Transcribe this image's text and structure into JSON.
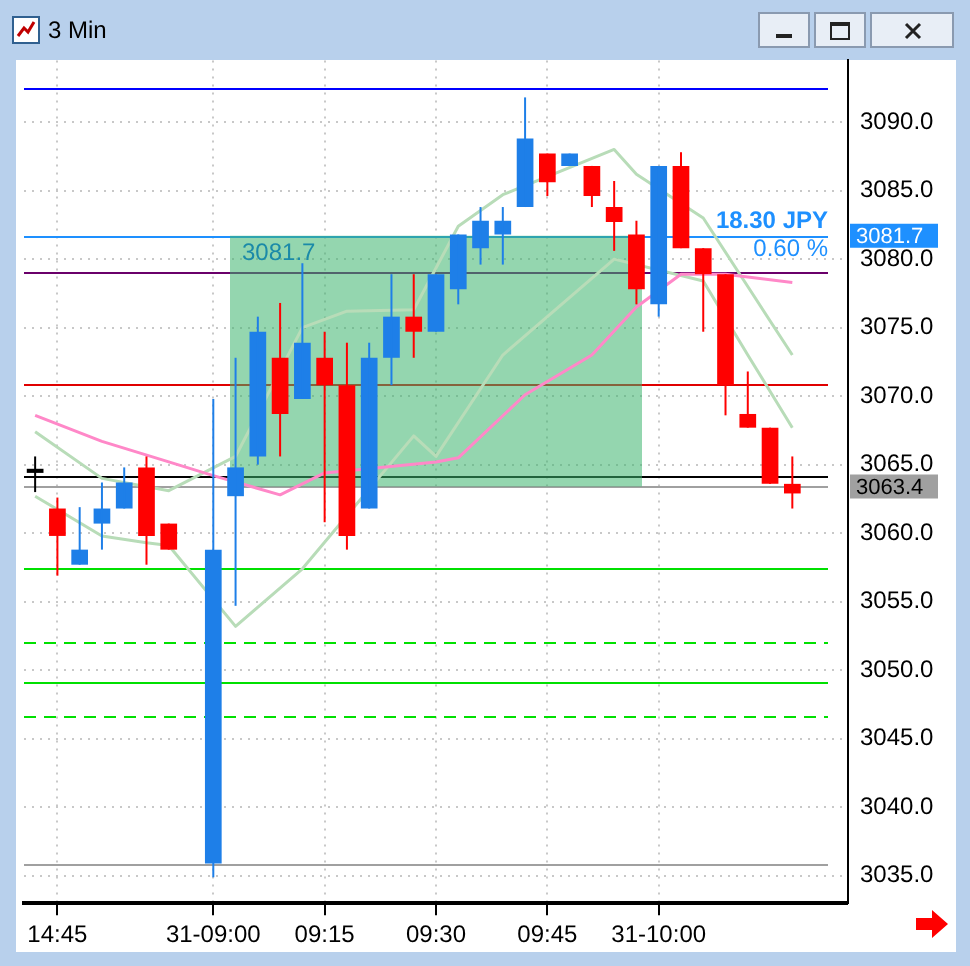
{
  "chart_data": {
    "type": "candlestick",
    "title": "3 Min",
    "categories": [
      null,
      "14:45",
      null,
      null,
      null,
      null,
      null,
      null,
      "31-09:00",
      null,
      null,
      null,
      null,
      "09:15",
      null,
      null,
      null,
      null,
      "09:30",
      null,
      null,
      null,
      null,
      "09:45",
      null,
      null,
      null,
      null,
      "31-10:00",
      null,
      null,
      null,
      null,
      null,
      null,
      null,
      null
    ],
    "ohlc": [
      [
        3064.4,
        3065.6,
        3063.0,
        3064.7
      ],
      [
        3061.8,
        3062.6,
        3056.9,
        3059.8
      ],
      [
        3057.7,
        3061.9,
        3057.7,
        3058.8
      ],
      [
        3060.7,
        3063.7,
        3058.8,
        3061.8
      ],
      [
        3061.8,
        3064.8,
        3061.8,
        3063.7
      ],
      [
        3064.8,
        3065.6,
        3057.7,
        3059.8
      ],
      [
        3060.7,
        3060.7,
        3058.8,
        3058.8
      ],
      null,
      [
        3035.9,
        3069.8,
        3034.9,
        3058.8
      ],
      [
        3062.7,
        3072.8,
        3054.7,
        3064.8
      ],
      [
        3065.6,
        3075.8,
        3065.0,
        3074.7
      ],
      [
        3072.8,
        3076.8,
        3065.6,
        3068.7
      ],
      [
        3069.8,
        3079.7,
        3069.8,
        3073.9
      ],
      [
        3072.8,
        3074.7,
        3060.8,
        3070.8
      ],
      [
        3070.8,
        3073.9,
        3058.8,
        3059.8
      ],
      [
        3061.8,
        3073.9,
        3061.8,
        3072.8
      ],
      [
        3072.8,
        3078.9,
        3070.8,
        3075.8
      ],
      [
        3075.8,
        3078.9,
        3072.8,
        3074.7
      ],
      [
        3074.7,
        3078.9,
        3074.7,
        3078.9
      ],
      [
        3077.8,
        3081.8,
        3076.7,
        3081.8
      ],
      [
        3080.8,
        3083.8,
        3079.6,
        3082.8
      ],
      [
        3081.8,
        3083.8,
        3079.6,
        3082.8
      ],
      [
        3083.8,
        3091.8,
        3083.8,
        3088.8
      ],
      [
        3087.7,
        3087.7,
        3084.6,
        3085.6
      ],
      [
        3086.8,
        3087.7,
        3086.8,
        3087.7
      ],
      [
        3086.8,
        3086.8,
        3083.8,
        3084.6
      ],
      [
        3083.8,
        3085.7,
        3080.6,
        3082.7
      ],
      [
        3081.8,
        3082.8,
        3076.7,
        3077.8
      ],
      [
        3076.7,
        3086.8,
        3075.8,
        3086.8
      ],
      [
        3086.8,
        3087.8,
        3080.8,
        3080.8
      ],
      [
        3080.8,
        3080.8,
        3074.7,
        3078.9
      ],
      [
        3078.9,
        3078.9,
        3068.6,
        3070.8
      ],
      [
        3068.7,
        3071.8,
        3067.7,
        3067.7
      ],
      [
        3067.7,
        3067.7,
        3063.6,
        3063.6
      ],
      [
        3063.6,
        3065.6,
        3061.8,
        3062.9
      ],
      null,
      null
    ],
    "series": [
      {
        "type": "line",
        "color": "#ff88c8",
        "values": [
          3068.6,
          null,
          null,
          3066.7,
          null,
          null,
          3065.2,
          null,
          3064.2,
          null,
          null,
          3062.8,
          null,
          3064.4,
          null,
          null,
          null,
          null,
          3065.2,
          3065.5,
          null,
          null,
          3070.1,
          null,
          null,
          3073.0,
          null,
          3076.5,
          null,
          3078.9,
          null,
          3078.9,
          null,
          null,
          3078.3,
          null,
          null
        ]
      },
      {
        "type": "line",
        "color": "#b8dcb8",
        "values": [
          3067.4,
          null,
          null,
          3064.0,
          null,
          null,
          3063.1,
          null,
          null,
          3065.6,
          null,
          null,
          3075.0,
          null,
          3076.2,
          null,
          null,
          3076.3,
          null,
          3082.4,
          null,
          3084.7,
          null,
          null,
          null,
          null,
          3088.0,
          3086.2,
          null,
          null,
          3083.0,
          null,
          3078.0,
          null,
          3073.0,
          null,
          null
        ]
      },
      {
        "type": "line",
        "color": "#b8dcb8",
        "values": [
          3062.7,
          null,
          null,
          3059.8,
          null,
          3059.3,
          3059.1,
          null,
          null,
          3053.2,
          null,
          null,
          3057.4,
          null,
          null,
          null,
          null,
          3067.1,
          3065.6,
          null,
          null,
          3073.0,
          null,
          null,
          null,
          null,
          3080.0,
          null,
          null,
          null,
          3078.4,
          null,
          3073.0,
          null,
          3067.7,
          null,
          null
        ]
      }
    ],
    "colors": [
      "#000000",
      "#ff0000",
      "#1e7fe8",
      "#1e7fe8",
      "#1e7fe8",
      "#ff0000",
      "#ff0000",
      null,
      "#1e7fe8",
      "#1e7fe8",
      "#1e7fe8",
      "#ff0000",
      "#1e7fe8",
      "#ff0000",
      "#ff0000",
      "#1e7fe8",
      "#1e7fe8",
      "#ff0000",
      "#1e7fe8",
      "#1e7fe8",
      "#1e7fe8",
      "#1e7fe8",
      "#1e7fe8",
      "#ff0000",
      "#1e7fe8",
      "#ff0000",
      "#ff0000",
      "#ff0000",
      "#1e7fe8",
      "#ff0000",
      "#ff0000",
      "#ff0000",
      "#ff0000",
      "#ff0000",
      "#ff0000",
      null,
      null
    ],
    "ylim": [
      3033,
      3094.5
    ],
    "yticks": [
      {
        "value": 3035,
        "label": "3035.0"
      },
      {
        "value": 3040,
        "label": "3040.0"
      },
      {
        "value": 3045,
        "label": "3045.0"
      },
      {
        "value": 3050,
        "label": "3050.0"
      },
      {
        "value": 3055,
        "label": "3055.0"
      },
      {
        "value": 3060,
        "label": "3060.0"
      },
      {
        "value": 3065,
        "label": "3065.0"
      },
      {
        "value": 3070,
        "label": "3070.0"
      },
      {
        "value": 3075,
        "label": "3075.0"
      },
      {
        "value": 3080,
        "label": "3080.0"
      },
      {
        "value": 3085,
        "label": "3085.0"
      },
      {
        "value": 3090,
        "label": "3090.0"
      }
    ],
    "grid": true,
    "legend": false,
    "ref_lines": [
      {
        "axis": "y",
        "value": 3092.5,
        "color": "#0000ff"
      },
      {
        "axis": "y",
        "value": 3079.1,
        "color": "#6a006a"
      },
      {
        "axis": "y",
        "value": 3070.9,
        "color": "#e00000"
      },
      {
        "axis": "y",
        "value": 3064.2,
        "color": "#000000"
      },
      {
        "axis": "y",
        "value": 3063.4,
        "color": "#a0a0a0",
        "label": "3063.4"
      },
      {
        "axis": "y",
        "value": 3081.7,
        "color": "#1e90ff",
        "label": "3081.7"
      },
      {
        "axis": "y",
        "value": 3057.4,
        "color": "#00e000"
      },
      {
        "axis": "y",
        "value": 3052.0,
        "color": "#00e000",
        "line_style": "dashed"
      },
      {
        "axis": "y",
        "value": 3049.2,
        "color": "#00e000"
      },
      {
        "axis": "y",
        "value": 3046.6,
        "color": "#00e000",
        "line_style": "dashed"
      },
      {
        "axis": "y",
        "value": 3035.9,
        "color": "#a0a0a0"
      }
    ],
    "bands": [
      {
        "axis": "y",
        "from": 3063.4,
        "to": 3081.7,
        "label": "3081.7",
        "color": "#3cb46e"
      }
    ],
    "annotations": [
      "18.30 JPY",
      "0.60 %"
    ]
  }
}
